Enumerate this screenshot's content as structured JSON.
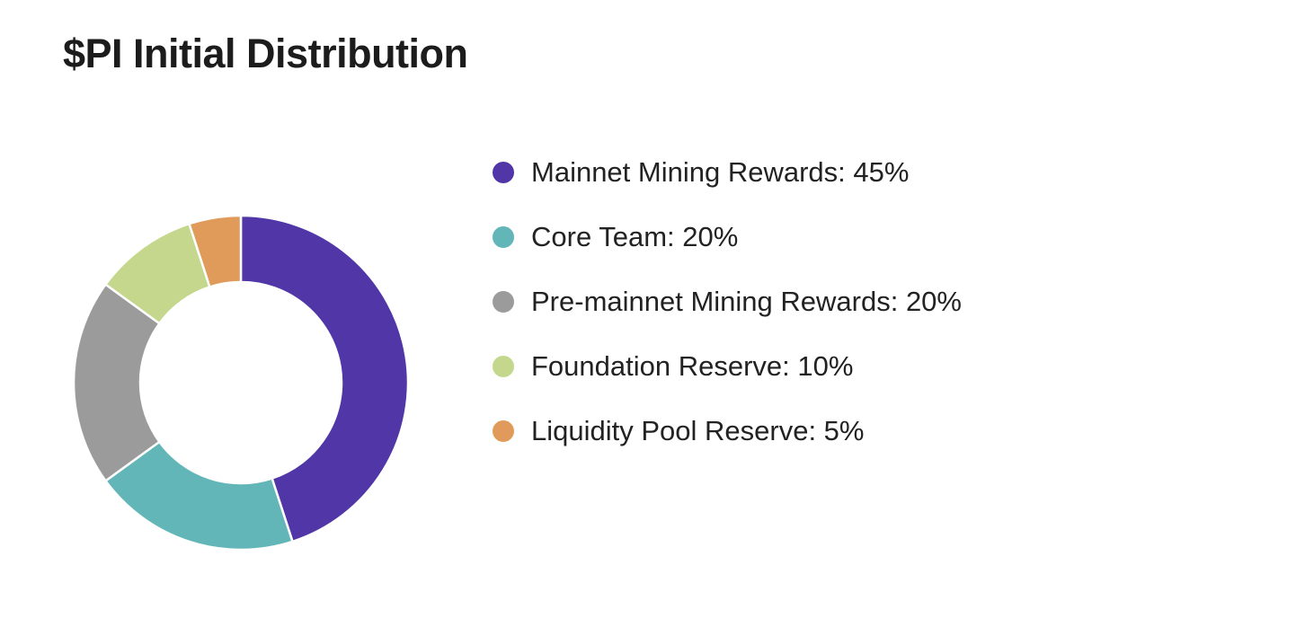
{
  "title": "$PI Initial Distribution",
  "chart_data": {
    "type": "pie",
    "donut": true,
    "title": "$PI Initial Distribution",
    "legend_position": "right",
    "series": [
      {
        "name": "Mainnet Mining Rewards",
        "value": 45,
        "label": "Mainnet Mining Rewards: 45%",
        "color": "#5036a6"
      },
      {
        "name": "Core Team",
        "value": 20,
        "label": "Core Team: 20%",
        "color": "#63b6b8"
      },
      {
        "name": "Pre-mainnet Mining Rewards",
        "value": 20,
        "label": "Pre-mainnet Mining Rewards: 20%",
        "color": "#9b9b9b"
      },
      {
        "name": "Foundation Reserve",
        "value": 10,
        "label": "Foundation Reserve: 10%",
        "color": "#c4d78c"
      },
      {
        "name": "Liquidity Pool Reserve",
        "value": 5,
        "label": "Liquidity Pool Reserve: 5%",
        "color": "#e09b5a"
      }
    ]
  }
}
